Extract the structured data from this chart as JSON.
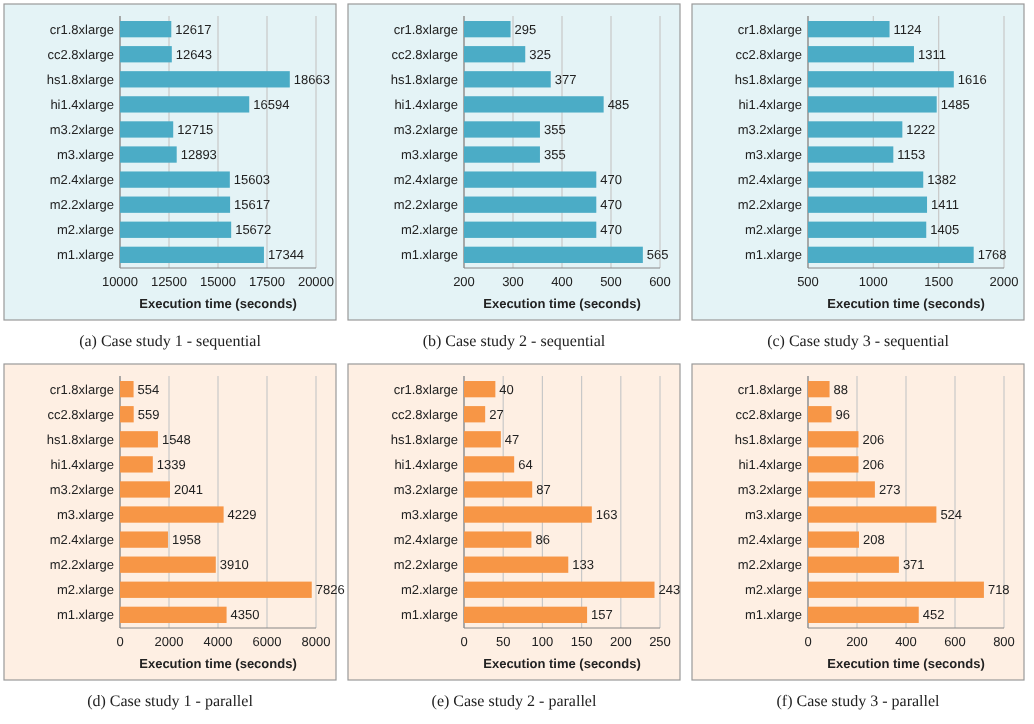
{
  "chart_data": [
    {
      "type": "bar",
      "orientation": "horizontal",
      "title": "(a) Case study 1 - sequential",
      "xlabel": "Execution time (seconds)",
      "categories": [
        "cr1.8xlarge",
        "cc2.8xlarge",
        "hs1.8xlarge",
        "hi1.4xlarge",
        "m3.2xlarge",
        "m3.xlarge",
        "m2.4xlarge",
        "m2.2xlarge",
        "m2.xlarge",
        "m1.xlarge"
      ],
      "values": [
        12617,
        12643,
        18663,
        16594,
        12715,
        12893,
        15603,
        15617,
        15672,
        17344
      ],
      "color": "#4bacc6",
      "xlim": [
        10000,
        20000
      ],
      "xticks": [
        10000,
        12500,
        15000,
        17500,
        20000
      ],
      "grid": "x",
      "data_labels": true
    },
    {
      "type": "bar",
      "orientation": "horizontal",
      "title": "(b) Case study 2 - sequential",
      "xlabel": "Execution time (seconds)",
      "categories": [
        "cr1.8xlarge",
        "cc2.8xlarge",
        "hs1.8xlarge",
        "hi1.4xlarge",
        "m3.2xlarge",
        "m3.xlarge",
        "m2.4xlarge",
        "m2.2xlarge",
        "m2.xlarge",
        "m1.xlarge"
      ],
      "values": [
        295,
        325,
        377,
        485,
        355,
        355,
        470,
        470,
        470,
        565
      ],
      "color": "#4bacc6",
      "xlim": [
        200,
        600
      ],
      "xticks": [
        200,
        300,
        400,
        500,
        600
      ],
      "grid": "x",
      "data_labels": true
    },
    {
      "type": "bar",
      "orientation": "horizontal",
      "title": "(c) Case study 3 - sequential",
      "xlabel": "Execution time (seconds)",
      "categories": [
        "cr1.8xlarge",
        "cc2.8xlarge",
        "hs1.8xlarge",
        "hi1.4xlarge",
        "m3.2xlarge",
        "m3.xlarge",
        "m2.4xlarge",
        "m2.2xlarge",
        "m2.xlarge",
        "m1.xlarge"
      ],
      "values": [
        1124,
        1311,
        1616,
        1485,
        1222,
        1153,
        1382,
        1411,
        1405,
        1768
      ],
      "color": "#4bacc6",
      "xlim": [
        500,
        2000
      ],
      "xticks": [
        500,
        1000,
        1500,
        2000
      ],
      "grid": "x",
      "data_labels": true
    },
    {
      "type": "bar",
      "orientation": "horizontal",
      "title": "(d) Case study 1 - parallel",
      "xlabel": "Execution time (seconds)",
      "categories": [
        "cr1.8xlarge",
        "cc2.8xlarge",
        "hs1.8xlarge",
        "hi1.4xlarge",
        "m3.2xlarge",
        "m3.xlarge",
        "m2.4xlarge",
        "m2.2xlarge",
        "m2.xlarge",
        "m1.xlarge"
      ],
      "values": [
        554,
        559,
        1548,
        1339,
        2041,
        4229,
        1958,
        3910,
        7826,
        4350
      ],
      "color": "#f79646",
      "xlim": [
        0,
        8000
      ],
      "xticks": [
        0,
        2000,
        4000,
        6000,
        8000
      ],
      "grid": "x",
      "data_labels": true
    },
    {
      "type": "bar",
      "orientation": "horizontal",
      "title": "(e) Case study 2 - parallel",
      "xlabel": "Execution time (seconds)",
      "categories": [
        "cr1.8xlarge",
        "cc2.8xlarge",
        "hs1.8xlarge",
        "hi1.4xlarge",
        "m3.2xlarge",
        "m3.xlarge",
        "m2.4xlarge",
        "m2.2xlarge",
        "m2.xlarge",
        "m1.xlarge"
      ],
      "values": [
        40,
        27,
        47,
        64,
        87,
        163,
        86,
        133,
        243,
        157
      ],
      "color": "#f79646",
      "xlim": [
        0,
        250
      ],
      "xticks": [
        0,
        50,
        100,
        150,
        200,
        250
      ],
      "grid": "x",
      "data_labels": true
    },
    {
      "type": "bar",
      "orientation": "horizontal",
      "title": "(f) Case study 3 - parallel",
      "xlabel": "Execution time (seconds)",
      "categories": [
        "cr1.8xlarge",
        "cc2.8xlarge",
        "hs1.8xlarge",
        "hi1.4xlarge",
        "m3.2xlarge",
        "m3.xlarge",
        "m2.4xlarge",
        "m2.2xlarge",
        "m2.xlarge",
        "m1.xlarge"
      ],
      "values": [
        88,
        96,
        206,
        206,
        273,
        524,
        208,
        371,
        718,
        452
      ],
      "color": "#f79646",
      "xlim": [
        0,
        800
      ],
      "xticks": [
        0,
        200,
        400,
        600,
        800
      ],
      "grid": "x",
      "data_labels": true
    }
  ]
}
